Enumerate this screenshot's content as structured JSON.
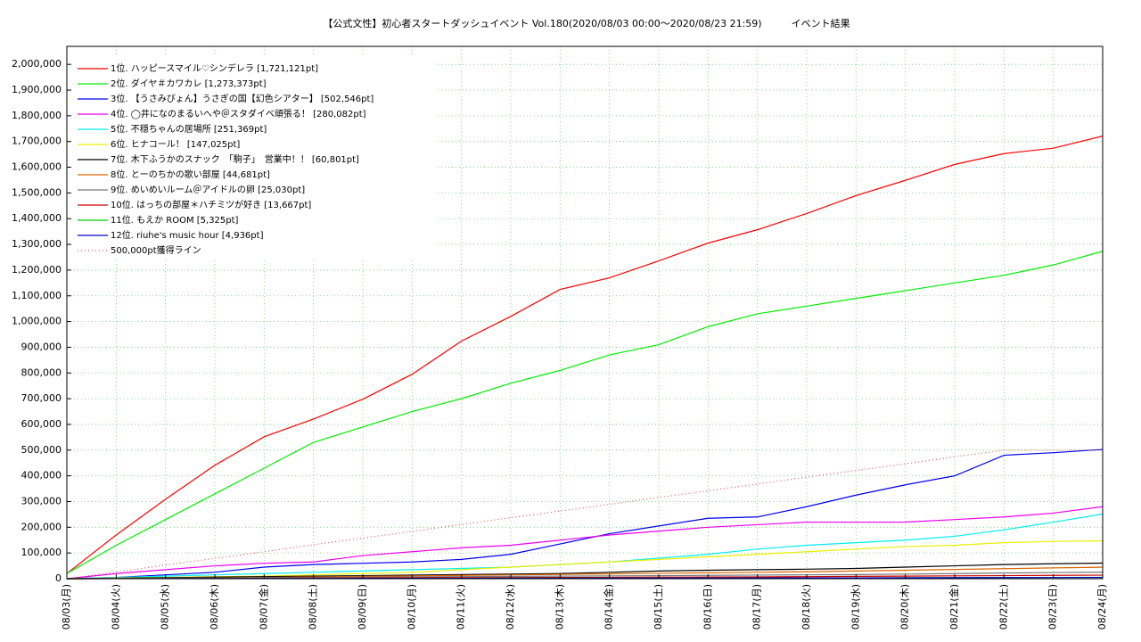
{
  "chart_data": {
    "type": "line",
    "title": "【公式文性】初心者スタートダッシュイベント Vol.180(2020/08/03 00:00〜2020/08/23 21:59)　　　イベント結果",
    "categories": [
      "08/03(月)",
      "08/04(火)",
      "08/05(水)",
      "08/06(木)",
      "08/07(金)",
      "08/08(土)",
      "08/09(日)",
      "08/10(月)",
      "08/11(火)",
      "08/12(水)",
      "08/13(木)",
      "08/14(金)",
      "08/15(土)",
      "08/16(日)",
      "08/17(月)",
      "08/18(火)",
      "08/19(水)",
      "08/20(木)",
      "08/21(金)",
      "08/22(土)",
      "08/23(日)",
      "08/24(月)"
    ],
    "ylim": [
      0,
      2070000
    ],
    "yticks": [
      {
        "value": 0,
        "label": "0"
      },
      {
        "value": 100000,
        "label": "100,000"
      },
      {
        "value": 200000,
        "label": "200,000"
      },
      {
        "value": 300000,
        "label": "300,000"
      },
      {
        "value": 400000,
        "label": "400,000"
      },
      {
        "value": 500000,
        "label": "500,000"
      },
      {
        "value": 600000,
        "label": "600,000"
      },
      {
        "value": 700000,
        "label": "700,000"
      },
      {
        "value": 800000,
        "label": "800,000"
      },
      {
        "value": 900000,
        "label": "900,000"
      },
      {
        "value": 1000000,
        "label": "1,000,000"
      },
      {
        "value": 1100000,
        "label": "1,100,000"
      },
      {
        "value": 1200000,
        "label": "1,200,000"
      },
      {
        "value": 1300000,
        "label": "1,300,000"
      },
      {
        "value": 1400000,
        "label": "1,400,000"
      },
      {
        "value": 1500000,
        "label": "1,500,000"
      },
      {
        "value": 1600000,
        "label": "1,600,000"
      },
      {
        "value": 1700000,
        "label": "1,700,000"
      },
      {
        "value": 1800000,
        "label": "1,800,000"
      },
      {
        "value": 1900000,
        "label": "1,900,000"
      },
      {
        "value": 2000000,
        "label": "2,000,000"
      }
    ],
    "grid": true,
    "legend": "upper left",
    "series": [
      {
        "name": "1位. ハッピースマイル♡シンデレラ [1,721,121pt]",
        "color": "#ff0000",
        "values": [
          20000,
          170000,
          309000,
          441000,
          552000,
          621000,
          698000,
          795000,
          924000,
          1020000,
          1125000,
          1170000,
          1236000,
          1305000,
          1357000,
          1420000,
          1490000,
          1549000,
          1611000,
          1653000,
          1674000,
          1721121
        ]
      },
      {
        "name": "2位. ダイヤ＃カワカレ [1,273,373pt]",
        "color": "#00ee00",
        "values": [
          20000,
          130000,
          230000,
          330000,
          430000,
          530000,
          590000,
          650000,
          700000,
          760000,
          810000,
          870000,
          910000,
          980000,
          1030000,
          1060000,
          1090000,
          1120000,
          1150000,
          1180000,
          1220000,
          1273373
        ]
      },
      {
        "name": "3位. 【うさみぴょん】うさぎの国【幻色シアター】 [502,546pt]",
        "color": "#0000ee",
        "values": [
          0,
          5000,
          15000,
          25000,
          45000,
          55000,
          60000,
          65000,
          75000,
          95000,
          135000,
          175000,
          205000,
          235000,
          240000,
          280000,
          325000,
          365000,
          400000,
          480000,
          490000,
          502546
        ]
      },
      {
        "name": "4位. ◯井になのまるいへや＠スタダイベ頑張る！ [280,082pt]",
        "color": "#ee00ee",
        "values": [
          0,
          20000,
          35000,
          50000,
          60000,
          65000,
          90000,
          105000,
          120000,
          130000,
          150000,
          170000,
          185000,
          200000,
          210000,
          220000,
          220000,
          220000,
          230000,
          240000,
          255000,
          280082
        ]
      },
      {
        "name": "5位. 不穏ちゃんの居場所 [251,369pt]",
        "color": "#00eeee",
        "values": [
          0,
          5000,
          10000,
          15000,
          20000,
          25000,
          30000,
          35000,
          40000,
          45000,
          55000,
          65000,
          80000,
          95000,
          115000,
          130000,
          140000,
          150000,
          165000,
          190000,
          220000,
          251369
        ]
      },
      {
        "name": "6位. ヒナコール！ [147,025pt]",
        "color": "#eeee00",
        "values": [
          0,
          3000,
          5000,
          8000,
          10000,
          15000,
          20000,
          25000,
          35000,
          45000,
          55000,
          65000,
          75000,
          85000,
          95000,
          105000,
          115000,
          125000,
          130000,
          140000,
          145000,
          147025
        ]
      },
      {
        "name": "7位. 木下ふうかのスナック　「駒子」　営業中！！ [60,801pt]",
        "color": "#000000",
        "values": [
          0,
          2000,
          4000,
          6000,
          8000,
          10000,
          12000,
          14000,
          16000,
          18000,
          20000,
          25000,
          30000,
          33000,
          35000,
          37000,
          40000,
          45000,
          50000,
          55000,
          58000,
          60801
        ]
      },
      {
        "name": "8位. とーのちかの歌い部屋 [44,681pt]",
        "color": "#dd6600",
        "values": [
          0,
          1000,
          2000,
          3000,
          5000,
          7000,
          9000,
          11000,
          13000,
          15000,
          17000,
          19000,
          21000,
          23000,
          25000,
          27000,
          30000,
          33000,
          36000,
          39000,
          42000,
          44681
        ]
      },
      {
        "name": "9位. めいめいルーム＠アイドルの卵 [25,030pt]",
        "color": "#777777",
        "values": [
          0,
          1000,
          2000,
          3000,
          4000,
          5000,
          6000,
          7000,
          8000,
          9000,
          10000,
          11000,
          12000,
          13000,
          14000,
          15000,
          16000,
          18000,
          20000,
          22000,
          24000,
          25030
        ]
      },
      {
        "name": "10位. はっちの部屋＊ハチミツが好き [13,667pt]",
        "color": "#cc0000",
        "values": [
          0,
          500,
          1000,
          1500,
          2000,
          2500,
          3000,
          3500,
          4000,
          4500,
          5000,
          5500,
          6000,
          6500,
          7000,
          8000,
          9000,
          10000,
          11000,
          12000,
          13000,
          13667
        ]
      },
      {
        "name": "11位. もえか ROOM [5,325pt]",
        "color": "#00cc00",
        "values": [
          0,
          200,
          400,
          600,
          800,
          1000,
          1200,
          1400,
          1600,
          1800,
          2000,
          2200,
          2400,
          2600,
          2800,
          3000,
          3300,
          3700,
          4100,
          4500,
          4900,
          5325
        ]
      },
      {
        "name": "12位. riuhe's music hour [4,936pt]",
        "color": "#0000cc",
        "values": [
          0,
          200,
          400,
          600,
          800,
          1000,
          1200,
          1400,
          1600,
          1800,
          2000,
          2200,
          2400,
          2600,
          2800,
          3000,
          3300,
          3600,
          4000,
          4300,
          4600,
          4936
        ]
      },
      {
        "name": "500,000pt獲得ライン",
        "color": "#dd5555",
        "line_style": "dotted",
        "values": [
          0,
          26000,
          53000,
          79000,
          105000,
          132000,
          158000,
          184000,
          211000,
          237000,
          263000,
          289000,
          316000,
          342000,
          368000,
          395000,
          421000,
          447000,
          474000,
          500000,
          500000,
          500000
        ]
      }
    ]
  }
}
